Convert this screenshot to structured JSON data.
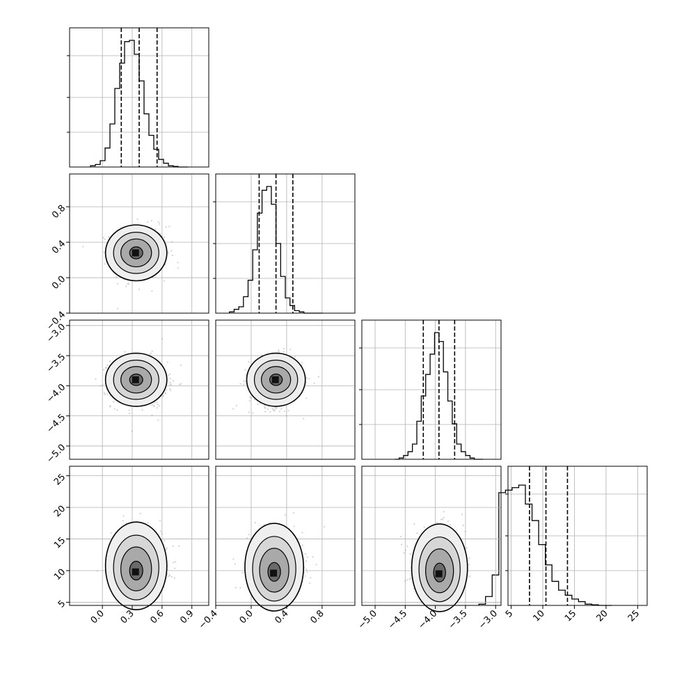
{
  "chart_data": {
    "type": "corner",
    "parameters": [
      {
        "range": [
          -0.33,
          1.07
        ],
        "ticks": [
          0.0,
          0.3,
          0.6,
          0.9
        ],
        "tick_labels": [
          "0.0",
          "0.3",
          "0.6",
          "0.9"
        ],
        "quantiles": [
          0.19,
          0.37,
          0.55
        ]
      },
      {
        "range": [
          -0.4,
          1.17
        ],
        "ticks": [
          -0.4,
          0.0,
          0.4,
          0.8
        ],
        "tick_labels": [
          "−0.4",
          "0.0",
          "0.4",
          "0.8"
        ],
        "quantiles": [
          0.09,
          0.28,
          0.47
        ]
      },
      {
        "range": [
          -5.22,
          -2.91
        ],
        "ticks": [
          -5.0,
          -4.5,
          -4.0,
          -3.5,
          -3.0
        ],
        "tick_labels": [
          "−5.0",
          "−4.5",
          "−4.0",
          "−3.5",
          "−3.0"
        ],
        "quantiles": [
          -4.2,
          -3.94,
          -3.68
        ]
      },
      {
        "range": [
          4.5,
          26.5
        ],
        "ticks": [
          5,
          10,
          15,
          20,
          25
        ],
        "tick_labels": [
          "5",
          "10",
          "15",
          "20",
          "25"
        ],
        "quantiles": [
          7.9,
          10.5,
          13.9
        ]
      }
    ],
    "histograms": [
      [
        0.01,
        0.02,
        0.05,
        0.15,
        0.34,
        0.62,
        0.82,
        0.99,
        1.0,
        0.89,
        0.68,
        0.42,
        0.25,
        0.14,
        0.06,
        0.03,
        0.01,
        0.005,
        0.0,
        0.0
      ],
      [
        0.01,
        0.03,
        0.05,
        0.13,
        0.26,
        0.5,
        0.79,
        0.97,
        1.0,
        0.86,
        0.55,
        0.29,
        0.12,
        0.06,
        0.02,
        0.01,
        0.0,
        0.0,
        0.0,
        0.0
      ],
      [
        0.0,
        0.01,
        0.03,
        0.06,
        0.12,
        0.3,
        0.5,
        0.67,
        0.83,
        1.0,
        0.93,
        0.69,
        0.46,
        0.28,
        0.12,
        0.06,
        0.03,
        0.01,
        0.0,
        0.0
      ],
      [
        0.01,
        0.07,
        0.24,
        0.89,
        0.91,
        0.93,
        0.95,
        0.8,
        0.67,
        0.48,
        0.32,
        0.19,
        0.12,
        0.08,
        0.05,
        0.03,
        0.01,
        0.005,
        0.0,
        0.0
      ]
    ],
    "means": [
      0.37,
      0.28,
      -3.94,
      10.4
    ],
    "sigmas": [
      0.14,
      0.15,
      0.21,
      3.0
    ],
    "density_peaks": [
      {
        "i": 1,
        "j": 0,
        "center": [
          0.34,
          0.28
        ]
      },
      {
        "i": 2,
        "j": 0,
        "center": [
          0.34,
          -3.9
        ]
      },
      {
        "i": 2,
        "j": 1,
        "center": [
          0.28,
          -3.9
        ]
      },
      {
        "i": 3,
        "j": 0,
        "center": [
          0.34,
          9.8
        ]
      },
      {
        "i": 3,
        "j": 1,
        "center": [
          0.26,
          9.6
        ]
      },
      {
        "i": 3,
        "j": 2,
        "center": [
          -3.93,
          9.5
        ]
      }
    ],
    "grid": true
  }
}
